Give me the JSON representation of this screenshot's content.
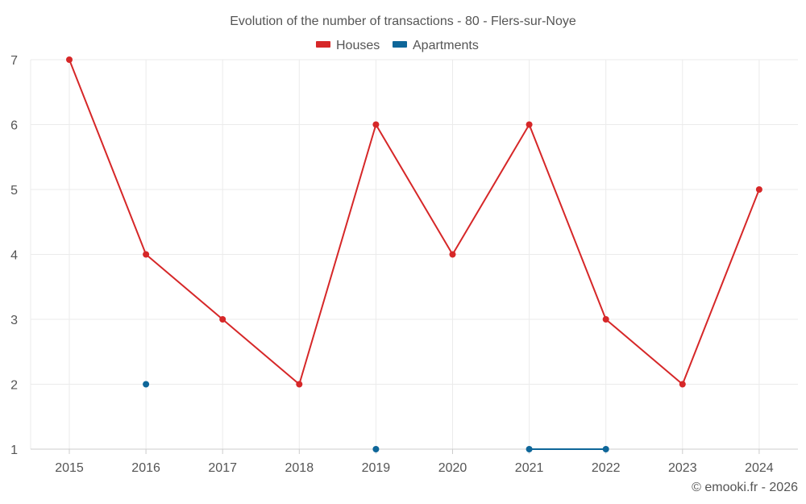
{
  "chart_data": {
    "type": "line",
    "title": "Evolution of the number of transactions - 80 - Flers-sur-Noye",
    "categories": [
      "2015",
      "2016",
      "2017",
      "2018",
      "2019",
      "2020",
      "2021",
      "2022",
      "2023",
      "2024"
    ],
    "series": [
      {
        "name": "Houses",
        "color": "#d62728",
        "values": [
          7,
          4,
          3,
          2,
          6,
          4,
          6,
          3,
          2,
          5
        ]
      },
      {
        "name": "Apartments",
        "color": "#0e6699",
        "values": [
          null,
          2,
          null,
          null,
          1,
          null,
          1,
          1,
          null,
          null
        ]
      }
    ],
    "y_ticks": [
      "1",
      "2",
      "3",
      "4",
      "5",
      "6",
      "7"
    ],
    "ylim": [
      1,
      7
    ],
    "xlabel": "",
    "ylabel": "",
    "legend_position": "top-center",
    "grid": true
  },
  "credit": "© emooki.fr - 2026"
}
